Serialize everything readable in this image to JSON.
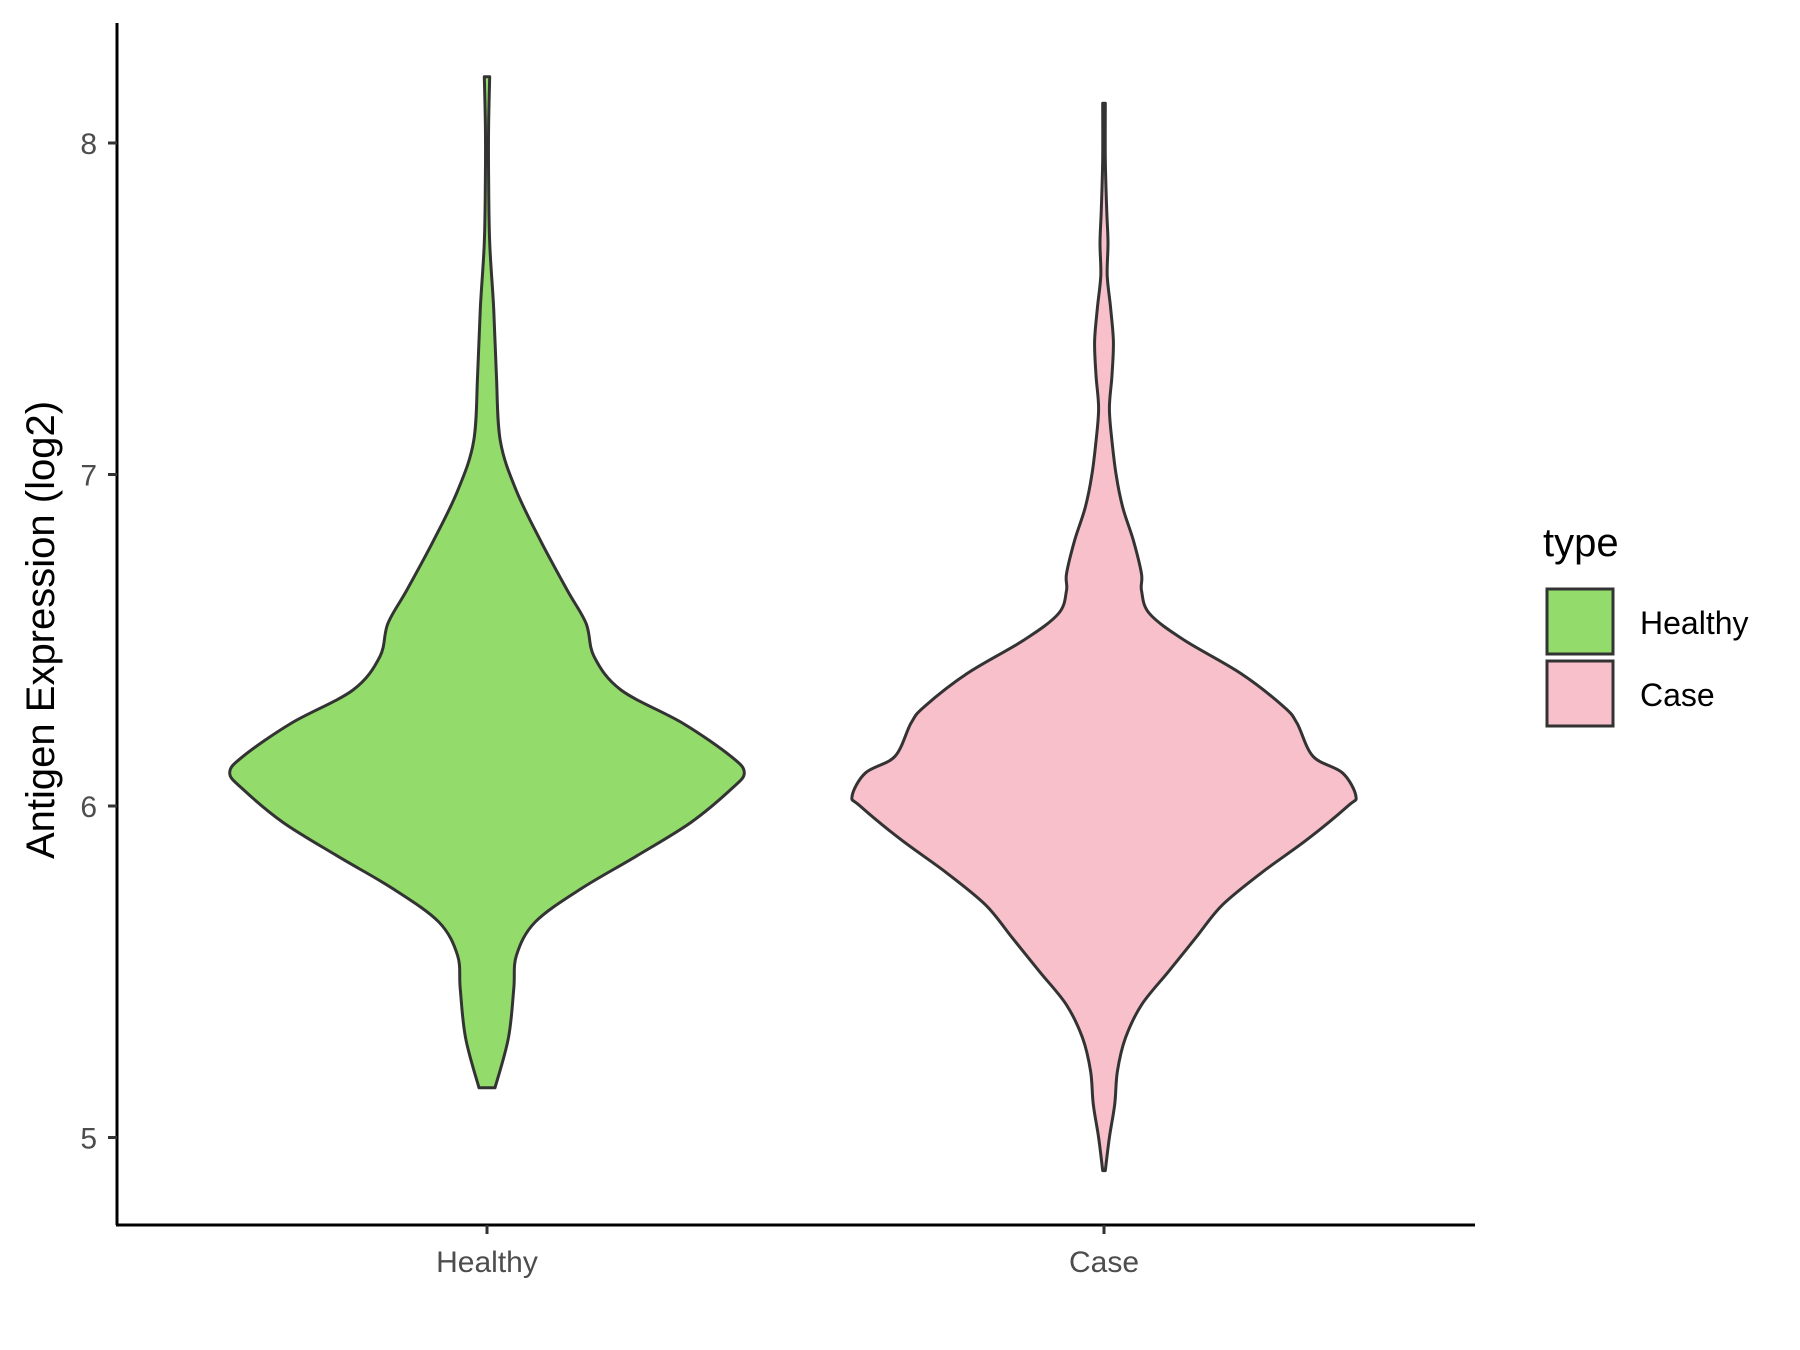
{
  "chart_data": {
    "type": "violin",
    "ylabel": "Antigen Expression (log2)",
    "xlabel": "",
    "categories": [
      "Healthy",
      "Case"
    ],
    "ylim": [
      4.7,
      8.38
    ],
    "yticks": [
      5,
      6,
      7,
      8
    ],
    "grid": false,
    "legend": {
      "title": "type",
      "placement": "right",
      "entries": [
        {
          "label": "Healthy",
          "color": "#93DC6B"
        },
        {
          "label": "Case",
          "color": "#F7C0CB"
        }
      ]
    },
    "series": [
      {
        "category": "Healthy",
        "color": "#93DC6B",
        "range": [
          5.15,
          8.2
        ],
        "median_approx": 6.1,
        "density_profile": [
          [
            5.15,
            0.03
          ],
          [
            5.3,
            0.08
          ],
          [
            5.45,
            0.1
          ],
          [
            5.55,
            0.11
          ],
          [
            5.65,
            0.18
          ],
          [
            5.75,
            0.35
          ],
          [
            5.85,
            0.56
          ],
          [
            5.95,
            0.76
          ],
          [
            6.05,
            0.91
          ],
          [
            6.1,
            0.96
          ],
          [
            6.15,
            0.91
          ],
          [
            6.25,
            0.73
          ],
          [
            6.35,
            0.5
          ],
          [
            6.45,
            0.4
          ],
          [
            6.55,
            0.37
          ],
          [
            6.65,
            0.3
          ],
          [
            6.8,
            0.2
          ],
          [
            6.95,
            0.11
          ],
          [
            7.1,
            0.05
          ],
          [
            7.3,
            0.035
          ],
          [
            7.5,
            0.025
          ],
          [
            7.7,
            0.01
          ],
          [
            7.9,
            0.006
          ],
          [
            8.05,
            0.006
          ],
          [
            8.2,
            0.01
          ]
        ]
      },
      {
        "category": "Case",
        "color": "#F7C0CB",
        "range": [
          4.9,
          8.12
        ],
        "median_approx": 6.05,
        "density_profile": [
          [
            4.9,
            0.005
          ],
          [
            5.0,
            0.02
          ],
          [
            5.1,
            0.04
          ],
          [
            5.2,
            0.05
          ],
          [
            5.3,
            0.08
          ],
          [
            5.4,
            0.14
          ],
          [
            5.5,
            0.24
          ],
          [
            5.6,
            0.34
          ],
          [
            5.7,
            0.44
          ],
          [
            5.8,
            0.59
          ],
          [
            5.9,
            0.76
          ],
          [
            6.0,
            0.91
          ],
          [
            6.03,
            0.94
          ],
          [
            6.1,
            0.89
          ],
          [
            6.15,
            0.78
          ],
          [
            6.25,
            0.72
          ],
          [
            6.3,
            0.67
          ],
          [
            6.4,
            0.51
          ],
          [
            6.5,
            0.3
          ],
          [
            6.58,
            0.17
          ],
          [
            6.65,
            0.14
          ],
          [
            6.7,
            0.14
          ],
          [
            6.8,
            0.11
          ],
          [
            6.9,
            0.07
          ],
          [
            7.0,
            0.045
          ],
          [
            7.1,
            0.03
          ],
          [
            7.2,
            0.02
          ],
          [
            7.3,
            0.03
          ],
          [
            7.4,
            0.035
          ],
          [
            7.5,
            0.025
          ],
          [
            7.6,
            0.012
          ],
          [
            7.7,
            0.015
          ],
          [
            7.8,
            0.01
          ],
          [
            7.95,
            0.005
          ],
          [
            8.12,
            0.005
          ]
        ]
      }
    ]
  }
}
